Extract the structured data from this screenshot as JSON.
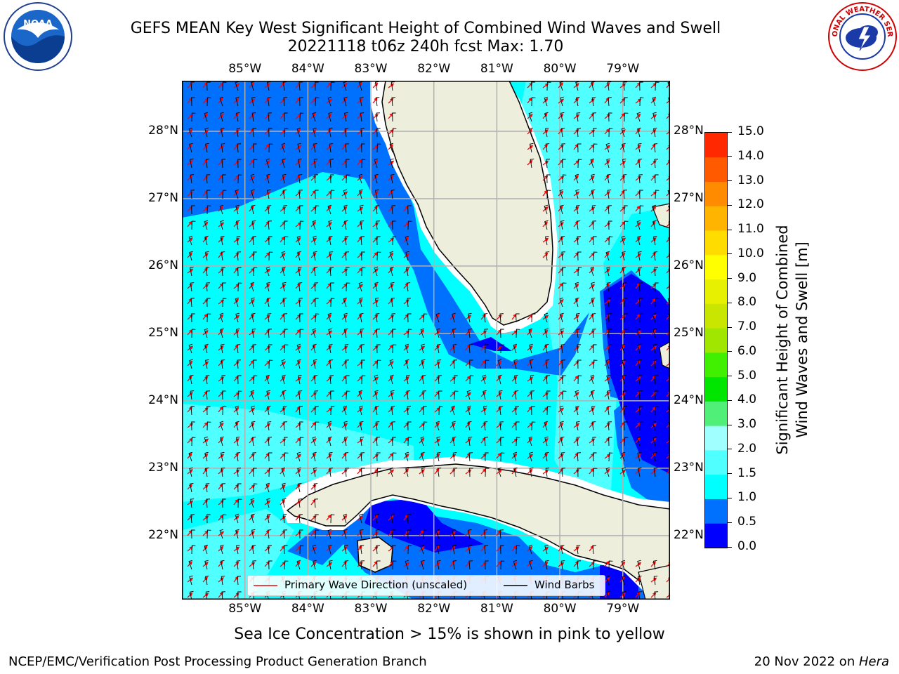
{
  "header": {
    "title_line1": "GEFS MEAN Key West Significant Height of Combined Wind Waves and Swell",
    "title_line2": "20221118 t06z 240h fcst   Max: 1.70"
  },
  "logos": {
    "left": {
      "name": "noaa-logo",
      "text": "NOAA"
    },
    "right": {
      "name": "nws-logo",
      "text": "NATIONAL WEATHER SERVICE"
    }
  },
  "map": {
    "lon_labels": [
      "85°W",
      "84°W",
      "83°W",
      "82°W",
      "81°W",
      "80°W",
      "79°W"
    ],
    "lat_labels": [
      "28°N",
      "27°N",
      "26°N",
      "25°N",
      "24°N",
      "23°N",
      "22°N"
    ],
    "lon_range": [
      -86.0,
      -78.25
    ],
    "lat_range": [
      21.05,
      28.75
    ]
  },
  "colorbar": {
    "label_line1": "Significant Height of Combined",
    "label_line2": "Wind Waves and Swell [m]",
    "ticks": [
      "0.0",
      "0.5",
      "1.0",
      "1.5",
      "2.0",
      "3.0",
      "4.0",
      "5.0",
      "6.0",
      "7.0",
      "8.0",
      "9.0",
      "10.0",
      "11.0",
      "12.0",
      "13.0",
      "14.0",
      "15.0"
    ],
    "colors": [
      "#0000ff",
      "#0070ff",
      "#00ffff",
      "#50ffff",
      "#a0ffff",
      "#50f078",
      "#00e600",
      "#40f000",
      "#a0e600",
      "#c8e600",
      "#e6f000",
      "#ffff00",
      "#ffdc00",
      "#ffb400",
      "#ff8c00",
      "#ff5a00",
      "#ff2800",
      "#ff0000"
    ]
  },
  "legend": {
    "wave_label": "Primary Wave Direction (unscaled)",
    "wind_label": "Wind Barbs",
    "wave_color": "#ff0000",
    "wind_color": "#000000"
  },
  "caption": "Sea Ice Concentration > 15% is shown in pink to yellow",
  "footer": {
    "left": "NCEP/EMC/Verification Post Processing Product Generation Branch",
    "date": "20 Nov 2022 on ",
    "host": "Hera"
  }
}
